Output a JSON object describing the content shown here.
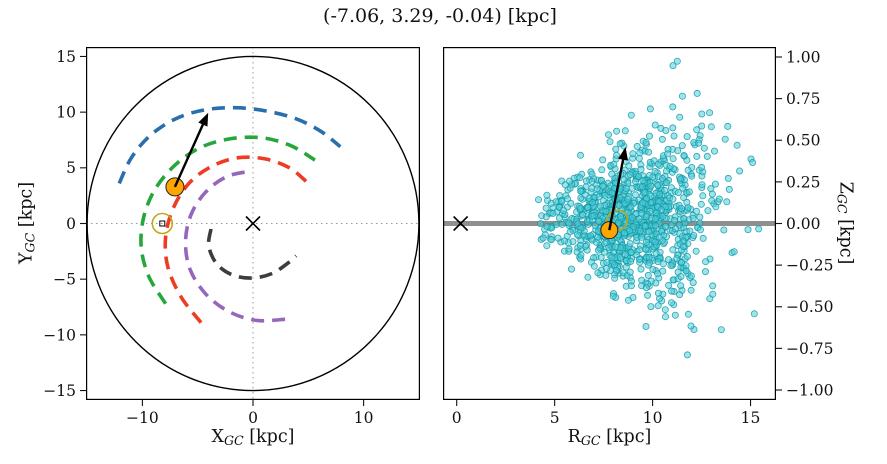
{
  "title": "(-7.06, 3.29, -0.04) [kpc]",
  "chart_data": [
    {
      "type": "line",
      "name": "galactic-plane-xy-view",
      "xlabel": {
        "main": "X",
        "sub": "GC",
        "unit": " [kpc]"
      },
      "ylabel": {
        "main": "Y",
        "sub": "GC",
        "unit": " [kpc]"
      },
      "xlim": [
        -15.1,
        15.1
      ],
      "ylim": [
        -15.85,
        15.85
      ],
      "xticks": [
        -10,
        0,
        10
      ],
      "xtick_labels": [
        "−10",
        "0",
        "10"
      ],
      "yticks": [
        -15,
        -10,
        -5,
        0,
        5,
        10,
        15
      ],
      "ytick_labels": [
        "−15",
        "−10",
        "−5",
        "0",
        "5",
        "10",
        "15"
      ],
      "boundary_circle_radius_kpc": 15,
      "crosshair_origin": [
        0,
        0
      ],
      "spiral_arms": [
        {
          "name": "blue-arm",
          "color": "#2a6fad",
          "points": [
            [
              -12.1,
              3.6
            ],
            [
              -11.0,
              5.9
            ],
            [
              -9.3,
              7.9
            ],
            [
              -7.0,
              9.4
            ],
            [
              -4.4,
              10.2
            ],
            [
              -1.6,
              10.4
            ],
            [
              1.2,
              10.1
            ],
            [
              3.9,
              9.4
            ],
            [
              6.1,
              8.3
            ],
            [
              7.9,
              6.9
            ]
          ]
        },
        {
          "name": "green-arm",
          "color": "#27a63c",
          "points": [
            [
              -7.9,
              -7.2
            ],
            [
              -9.4,
              -4.8
            ],
            [
              -10.1,
              -2.2
            ],
            [
              -9.9,
              0.5
            ],
            [
              -8.9,
              3.0
            ],
            [
              -7.1,
              5.2
            ],
            [
              -4.8,
              6.8
            ],
            [
              -2.1,
              7.6
            ],
            [
              0.8,
              7.7
            ],
            [
              3.4,
              7.0
            ],
            [
              5.6,
              5.7
            ]
          ]
        },
        {
          "name": "red-arm",
          "color": "#ee3b24",
          "points": [
            [
              -4.7,
              -8.9
            ],
            [
              -6.5,
              -6.6
            ],
            [
              -7.7,
              -3.9
            ],
            [
              -7.9,
              -1.2
            ],
            [
              -7.2,
              1.4
            ],
            [
              -5.8,
              3.6
            ],
            [
              -3.8,
              5.1
            ],
            [
              -1.4,
              5.9
            ],
            [
              1.1,
              5.8
            ],
            [
              3.3,
              5.0
            ],
            [
              4.9,
              3.7
            ]
          ]
        },
        {
          "name": "purple-arm",
          "color": "#9467bd",
          "points": [
            [
              2.9,
              -8.6
            ],
            [
              0.3,
              -8.7
            ],
            [
              -2.2,
              -7.9
            ],
            [
              -4.3,
              -6.3
            ],
            [
              -5.7,
              -4.1
            ],
            [
              -6.1,
              -1.6
            ],
            [
              -5.6,
              0.8
            ],
            [
              -4.3,
              2.8
            ],
            [
              -2.4,
              4.2
            ],
            [
              -0.2,
              4.7
            ]
          ]
        },
        {
          "name": "dark-arm",
          "color": "#3d3d3d",
          "points": [
            [
              -3.8,
              -0.5
            ],
            [
              -4.0,
              -2.0
            ],
            [
              -3.3,
              -3.6
            ],
            [
              -1.9,
              -4.6
            ],
            [
              -0.1,
              -4.9
            ],
            [
              1.7,
              -4.5
            ],
            [
              3.1,
              -3.6
            ],
            [
              3.9,
              -2.9
            ]
          ]
        }
      ],
      "sun_marker": {
        "x": -8.2,
        "y": 0,
        "ring_color": "#c2a61c"
      },
      "cluster_marker": {
        "x": -7.06,
        "y": 3.29,
        "color": "#ffa500"
      },
      "motion_arrow": {
        "x1": -7.06,
        "y1": 3.29,
        "x2": -4.05,
        "y2": 9.95
      },
      "gc_marker": {
        "x": 0,
        "y": 0,
        "symbol": "x"
      }
    },
    {
      "type": "scatter",
      "name": "r-z-distribution-view",
      "xlabel": {
        "main": "R",
        "sub": "GC",
        "unit": " [kpc]"
      },
      "ylabel": {
        "main": "Z",
        "sub": "GC",
        "unit": " [kpc]"
      },
      "xlim": [
        -0.7,
        16.3
      ],
      "ylim": [
        -1.06,
        1.06
      ],
      "xticks": [
        0,
        5,
        10,
        15
      ],
      "xtick_labels": [
        "0",
        "5",
        "10",
        "15"
      ],
      "yticks": [
        -1,
        -0.75,
        -0.5,
        -0.25,
        0,
        0.25,
        0.5,
        0.75,
        1
      ],
      "ytick_labels": [
        "−1.00",
        "−0.75",
        "−0.50",
        "−0.25",
        "0.00",
        "0.25",
        "0.50",
        "0.75",
        "1.00"
      ],
      "midplane_line": {
        "z": 0,
        "color": "#8f8f8f",
        "x_range": [
          -0.7,
          16.3
        ]
      },
      "scatter": {
        "n": 1000,
        "seed": 20240613,
        "color": "#4fd0da",
        "edge_color": "#1596a5",
        "r_mean": 9.0,
        "r_sigma": 2.1,
        "r_min": 3.7,
        "r_max": 15.6,
        "z_mean": 0.04,
        "z_sigma_base": 0.07,
        "z_sigma_slope": 0.028,
        "z_min": -0.97,
        "z_max": 1.0
      },
      "sun_marker": {
        "x": 8.2,
        "y": 0.02,
        "ring_color": "#c2a61c"
      },
      "cluster_marker": {
        "x": 7.79,
        "y": -0.04,
        "color": "#ffa500"
      },
      "motion_arrow": {
        "x1": 7.79,
        "y1": -0.04,
        "x2": 8.62,
        "y2": 0.46
      },
      "gc_marker": {
        "x": 0.2,
        "y": 0,
        "symbol": "x"
      }
    }
  ]
}
